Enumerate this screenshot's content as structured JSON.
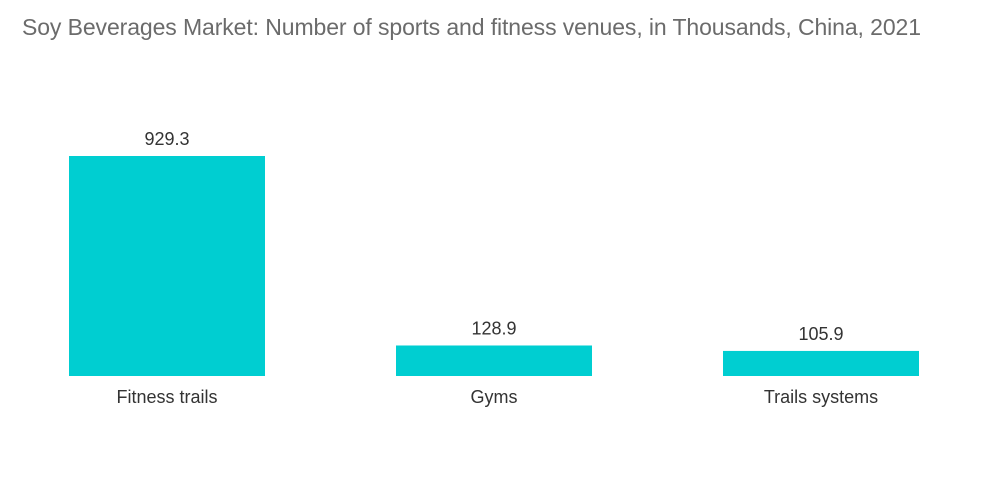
{
  "chart_data": {
    "type": "bar",
    "title": "Soy Beverages Market: Number of sports and fitness venues, in Thousands, China, 2021",
    "categories": [
      "Fitness trails",
      "Gyms",
      "Trails systems"
    ],
    "values": [
      929.3,
      128.9,
      105.9
    ],
    "data_labels": [
      "929.3",
      "128.9",
      "105.9"
    ],
    "xlabel": "",
    "ylabel": "",
    "ylim": [
      0,
      929.3
    ],
    "grid": false,
    "legend": "none",
    "colors": {
      "bar": "#00ced1"
    }
  }
}
